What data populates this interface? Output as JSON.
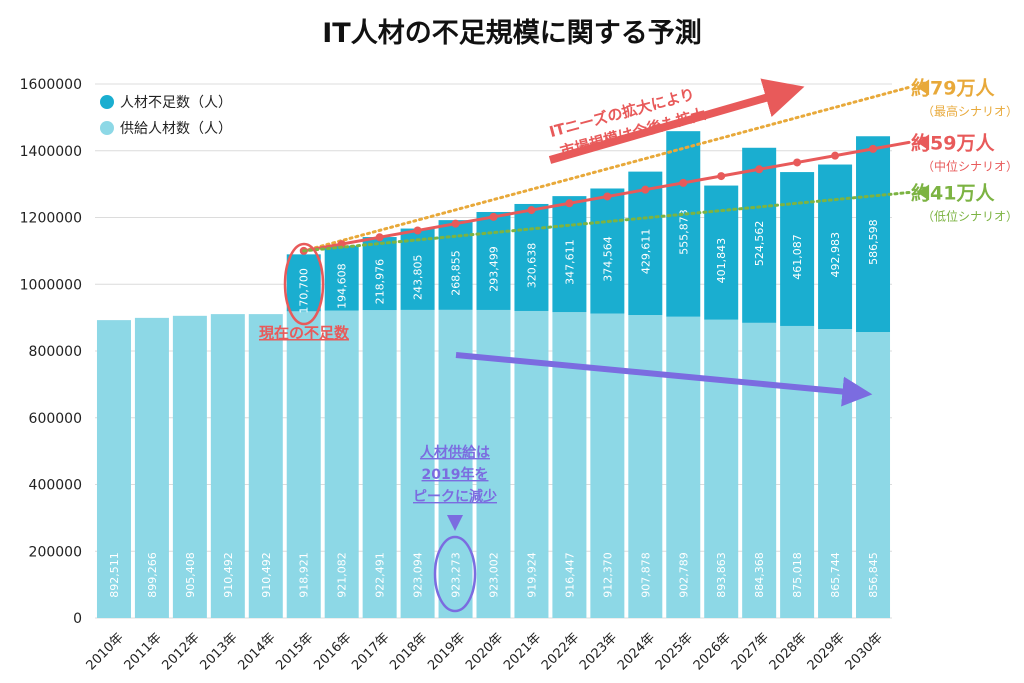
{
  "chart_data": {
    "type": "bar",
    "title": "IT人材の不足規模に関する予測",
    "categories": [
      "2010年",
      "2011年",
      "2012年",
      "2013年",
      "2014年",
      "2015年",
      "2016年",
      "2017年",
      "2018年",
      "2019年",
      "2020年",
      "2021年",
      "2022年",
      "2023年",
      "2024年",
      "2025年",
      "2026年",
      "2027年",
      "2028年",
      "2029年",
      "2030年"
    ],
    "stacked": true,
    "series": [
      {
        "name": "供給人材数（人）",
        "color": "#8dd8e6",
        "values": [
          892511,
          899266,
          905408,
          910492,
          910492,
          918921,
          921082,
          922491,
          923094,
          923273,
          923002,
          919924,
          916447,
          912370,
          907878,
          902789,
          893863,
          884368,
          875018,
          865744,
          856845
        ],
        "labels": [
          "892,511",
          "899,266",
          "905,408",
          "910,492",
          "910,492",
          "918,921",
          "921,082",
          "922,491",
          "923,094",
          "923,273",
          "923,002",
          "919,924",
          "916,447",
          "912,370",
          "907,878",
          "902,789",
          "893,863",
          "884,368",
          "875,018",
          "865,744",
          "856,845"
        ]
      },
      {
        "name": "人材不足数（人）",
        "color": "#1aaed0",
        "values": [
          null,
          null,
          null,
          null,
          null,
          170700,
          194608,
          218976,
          243805,
          268855,
          293499,
          320638,
          347611,
          374564,
          429611,
          555873,
          401843,
          524562,
          461087,
          492983,
          586598
        ],
        "labels": [
          "",
          "",
          "",
          "",
          "",
          "170,700",
          "194,608",
          "218,976",
          "243,805",
          "268,855",
          "293,499",
          "320,638",
          "347,611",
          "374,564",
          "429,611",
          "555,873",
          "401,843",
          "524,562",
          "461,087",
          "492,983",
          "586,598"
        ]
      }
    ],
    "ylim": [
      0,
      1600000
    ],
    "yticks": [
      "0",
      "200000",
      "400000",
      "600000",
      "800000",
      "1000000",
      "1200000",
      "1400000",
      "1600000"
    ],
    "legend_position": "top-left",
    "grid": true,
    "scenario_lines": [
      {
        "label": "約79万人",
        "sub": "（最高シナリオ）",
        "color": "#e8a93a",
        "start": [
          2015,
          1100000
        ],
        "end": [
          2030.95,
          1590000
        ]
      },
      {
        "label": "約59万人",
        "sub": "（中位シナリオ）",
        "color": "#e85a5a",
        "start": [
          2015,
          1100000
        ],
        "end": [
          2030.95,
          1425000
        ]
      },
      {
        "label": "約41万人",
        "sub": "（低位シナリオ）",
        "color": "#7cb342",
        "start": [
          2015,
          1100000
        ],
        "end": [
          2030.95,
          1275000
        ]
      }
    ],
    "annotations": {
      "market": [
        "ITニーズの拡大により",
        "市場規模は今後も拡大"
      ],
      "current": "現在の不足数",
      "supply": [
        "人材供給は",
        "2019年を",
        "ピークに減少"
      ]
    }
  }
}
